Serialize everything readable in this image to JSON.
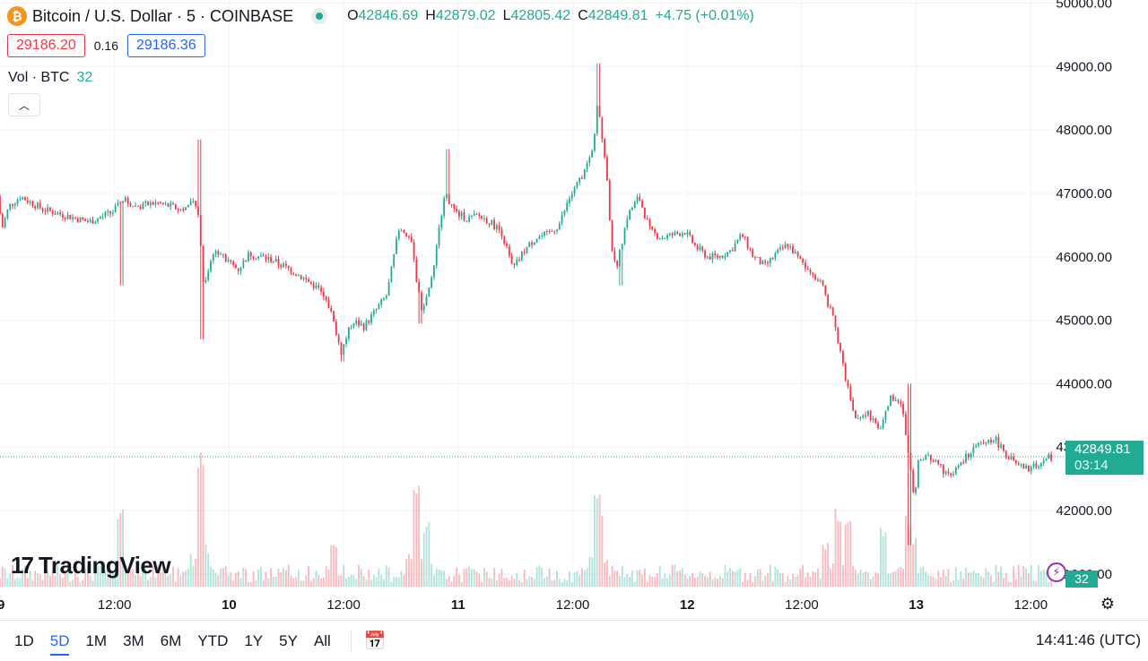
{
  "header": {
    "symbol_title": "Bitcoin / U.S. Dollar · 5 · COINBASE",
    "icon": "bitcoin-icon",
    "ohlc": [
      {
        "k": "O",
        "v": "42846.69"
      },
      {
        "k": "H",
        "v": "42879.02"
      },
      {
        "k": "L",
        "v": "42805.42"
      },
      {
        "k": "C",
        "v": "42849.81"
      }
    ],
    "change": "+4.75 (+0.01%)",
    "bid": "29186.20",
    "spread": "0.16",
    "ask": "29186.36",
    "volume_label": "Vol · BTC",
    "volume_value": "32"
  },
  "price_tag": {
    "price": "42849.81",
    "countdown": "03:14"
  },
  "volume_tag": "32",
  "logo_text": "TradingView",
  "logo_mark": "17",
  "colors": {
    "up": "#22ab94",
    "down": "#f23645",
    "grid": "#f0f3fa"
  },
  "toolbar": {
    "timeframes": [
      "1D",
      "5D",
      "1M",
      "3M",
      "6M",
      "YTD",
      "1Y",
      "5Y",
      "All"
    ],
    "active_timeframe": "5D",
    "clock": "14:41:46 (UTC)"
  },
  "chart_data": {
    "type": "candlestick",
    "interval": "5 minutes",
    "y_ticks": [
      "41000.00",
      "42000.00",
      "43000.00",
      "44000.00",
      "45000.00",
      "46000.00",
      "47000.00",
      "48000.00",
      "49000.00",
      "50000.00"
    ],
    "ylim": [
      40800,
      50050
    ],
    "x_ticks": [
      {
        "label": "12:00",
        "t": 0.5,
        "bold": false
      },
      {
        "label": "10",
        "t": 1.0,
        "bold": true
      },
      {
        "label": "12:00",
        "t": 1.5,
        "bold": false
      },
      {
        "label": "11",
        "t": 2.0,
        "bold": true
      },
      {
        "label": "12:00",
        "t": 2.5,
        "bold": false
      },
      {
        "label": "12",
        "t": 3.0,
        "bold": true
      },
      {
        "label": "12:00",
        "t": 3.5,
        "bold": false
      },
      {
        "label": "13",
        "t": 4.0,
        "bold": true
      },
      {
        "label": "12:00",
        "t": 4.5,
        "bold": false
      }
    ],
    "xlim": [
      0.0,
      4.62
    ],
    "last_price": 42849.81,
    "price_path": [
      [
        0.0,
        46950
      ],
      [
        0.02,
        46450
      ],
      [
        0.05,
        46800
      ],
      [
        0.1,
        46950
      ],
      [
        0.2,
        46750
      ],
      [
        0.3,
        46650
      ],
      [
        0.4,
        46550
      ],
      [
        0.5,
        46700
      ],
      [
        0.55,
        46900
      ],
      [
        0.6,
        46800
      ],
      [
        0.7,
        46850
      ],
      [
        0.8,
        46750
      ],
      [
        0.86,
        46850
      ],
      [
        0.88,
        46600
      ],
      [
        0.9,
        45550
      ],
      [
        0.95,
        46150
      ],
      [
        1.0,
        45950
      ],
      [
        1.05,
        45800
      ],
      [
        1.1,
        46050
      ],
      [
        1.2,
        45950
      ],
      [
        1.3,
        45750
      ],
      [
        1.4,
        45500
      ],
      [
        1.45,
        45200
      ],
      [
        1.5,
        44500
      ],
      [
        1.55,
        45000
      ],
      [
        1.6,
        44900
      ],
      [
        1.65,
        45150
      ],
      [
        1.7,
        45400
      ],
      [
        1.75,
        46400
      ],
      [
        1.8,
        46350
      ],
      [
        1.85,
        45150
      ],
      [
        1.9,
        45700
      ],
      [
        1.95,
        47000
      ],
      [
        2.0,
        46700
      ],
      [
        2.05,
        46600
      ],
      [
        2.1,
        46650
      ],
      [
        2.15,
        46550
      ],
      [
        2.2,
        46400
      ],
      [
        2.25,
        45800
      ],
      [
        2.3,
        46100
      ],
      [
        2.35,
        46300
      ],
      [
        2.4,
        46350
      ],
      [
        2.45,
        46500
      ],
      [
        2.5,
        46950
      ],
      [
        2.55,
        47250
      ],
      [
        2.6,
        47700
      ],
      [
        2.62,
        48500
      ],
      [
        2.64,
        47900
      ],
      [
        2.66,
        47300
      ],
      [
        2.68,
        46200
      ],
      [
        2.7,
        45800
      ],
      [
        2.75,
        46650
      ],
      [
        2.8,
        46950
      ],
      [
        2.85,
        46400
      ],
      [
        2.9,
        46300
      ],
      [
        3.0,
        46400
      ],
      [
        3.05,
        46150
      ],
      [
        3.1,
        46000
      ],
      [
        3.15,
        46000
      ],
      [
        3.2,
        46100
      ],
      [
        3.25,
        46350
      ],
      [
        3.3,
        46000
      ],
      [
        3.35,
        45850
      ],
      [
        3.4,
        46050
      ],
      [
        3.45,
        46200
      ],
      [
        3.5,
        45950
      ],
      [
        3.55,
        45800
      ],
      [
        3.6,
        45550
      ],
      [
        3.65,
        45000
      ],
      [
        3.7,
        44100
      ],
      [
        3.75,
        43400
      ],
      [
        3.8,
        43550
      ],
      [
        3.85,
        43250
      ],
      [
        3.9,
        43800
      ],
      [
        3.95,
        43650
      ],
      [
        3.98,
        42800
      ],
      [
        4.0,
        42150
      ],
      [
        4.02,
        42750
      ],
      [
        4.05,
        42850
      ],
      [
        4.1,
        42750
      ],
      [
        4.15,
        42550
      ],
      [
        4.2,
        42700
      ],
      [
        4.25,
        42950
      ],
      [
        4.3,
        43050
      ],
      [
        4.35,
        43150
      ],
      [
        4.4,
        42900
      ],
      [
        4.45,
        42700
      ],
      [
        4.5,
        42650
      ],
      [
        4.55,
        42750
      ],
      [
        4.6,
        42849.81
      ]
    ],
    "wick_extremes": [
      {
        "t": 0.53,
        "low": 45550
      },
      {
        "t": 0.874,
        "high": 47850
      },
      {
        "t": 0.886,
        "low": 44700
      },
      {
        "t": 1.49,
        "low": 44350
      },
      {
        "t": 1.83,
        "low": 44950
      },
      {
        "t": 1.96,
        "high": 47700
      },
      {
        "t": 2.61,
        "high": 49050
      },
      {
        "t": 2.71,
        "low": 45550
      },
      {
        "t": 3.965,
        "high": 44000
      },
      {
        "t": 3.97,
        "low": 41450
      }
    ],
    "volume_spikes": [
      {
        "t": 0.53,
        "v": 0.55
      },
      {
        "t": 0.874,
        "v": 1.0
      },
      {
        "t": 0.88,
        "v": 0.55
      },
      {
        "t": 1.46,
        "v": 0.3
      },
      {
        "t": 1.82,
        "v": 0.75
      },
      {
        "t": 1.86,
        "v": 0.45
      },
      {
        "t": 2.61,
        "v": 0.7
      },
      {
        "t": 2.62,
        "v": 0.55
      },
      {
        "t": 3.6,
        "v": 0.3
      },
      {
        "t": 3.66,
        "v": 0.55
      },
      {
        "t": 3.7,
        "v": 0.45
      },
      {
        "t": 3.85,
        "v": 0.4
      },
      {
        "t": 3.97,
        "v": 0.5
      },
      {
        "t": 3.99,
        "v": 0.35
      }
    ]
  }
}
